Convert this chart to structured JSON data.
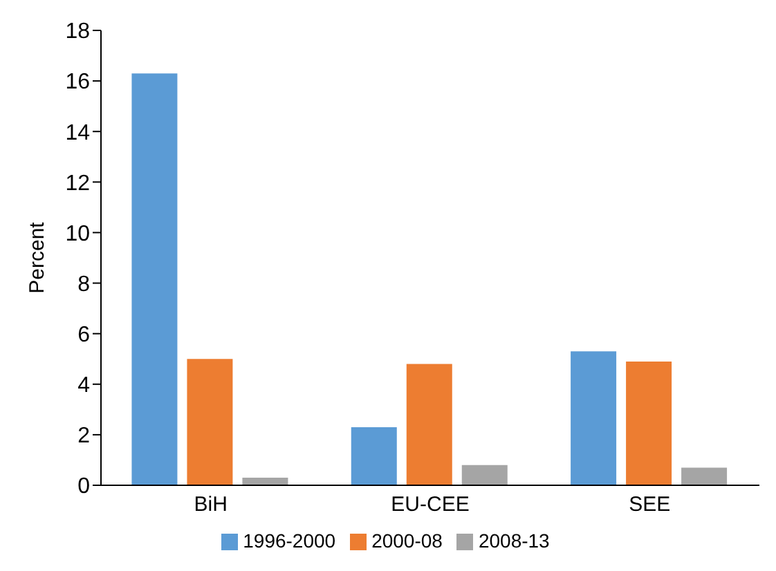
{
  "chart_data": {
    "type": "bar",
    "ylabel": "Percent",
    "categories": [
      "BiH",
      "EU-CEE",
      "SEE"
    ],
    "series": [
      {
        "name": "1996-2000",
        "color": "#5b9bd5",
        "values": [
          16.3,
          2.3,
          5.3
        ]
      },
      {
        "name": "2000-08",
        "color": "#ed7d31",
        "values": [
          5.0,
          4.8,
          4.9
        ]
      },
      {
        "name": "2008-13",
        "color": "#a5a5a5",
        "values": [
          0.3,
          0.8,
          0.7
        ]
      }
    ],
    "ylim": [
      0,
      18
    ],
    "yticks": [
      0,
      2,
      4,
      6,
      8,
      10,
      12,
      14,
      16,
      18
    ],
    "grid": false,
    "legend": "bottom"
  }
}
